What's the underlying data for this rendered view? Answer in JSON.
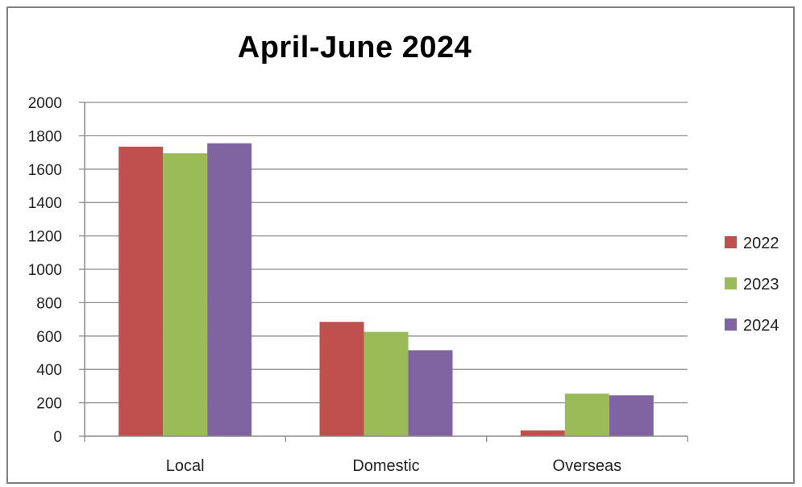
{
  "chart_data": {
    "type": "bar",
    "title": "April-June 2024",
    "categories": [
      "Local",
      "Domestic",
      "Overseas"
    ],
    "series": [
      {
        "name": "2022",
        "color": "#c0504d",
        "values": [
          1735,
          685,
          35
        ]
      },
      {
        "name": "2023",
        "color": "#9bbb59",
        "values": [
          1695,
          625,
          255
        ]
      },
      {
        "name": "2024",
        "color": "#8064a2",
        "values": [
          1755,
          515,
          245
        ]
      }
    ],
    "yticks": [
      "0",
      "200",
      "400",
      "600",
      "800",
      "1000",
      "1200",
      "1400",
      "1600",
      "1800",
      "2000"
    ],
    "ylim": [
      0,
      2000
    ],
    "grid": true,
    "legend": "right"
  }
}
